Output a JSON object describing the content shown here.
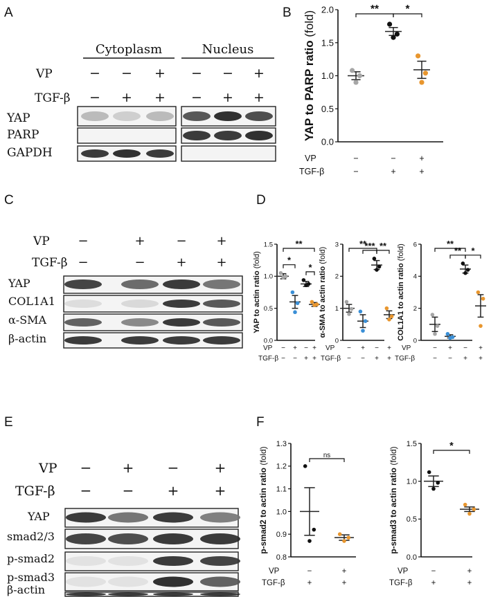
{
  "panels": {
    "A": {
      "letter": "A",
      "headers": [
        "Cytoplasm",
        "Nucleus"
      ],
      "rows": [
        {
          "label": "VP",
          "signs": [
            "−",
            "−",
            "+",
            "−",
            "−",
            "+"
          ]
        },
        {
          "label": "TGF-β",
          "signs": [
            "−",
            "+",
            "+",
            "−",
            "+",
            "+"
          ]
        }
      ],
      "blots": [
        {
          "label": "YAP",
          "intensity": [
            0.25,
            0.15,
            0.25,
            0.75,
            0.95,
            0.8
          ]
        },
        {
          "label": "PARP",
          "intensity": [
            0,
            0,
            0,
            0.9,
            0.9,
            0.95
          ]
        },
        {
          "label": "GAPDH",
          "intensity": [
            0.9,
            0.95,
            0.9,
            0,
            0,
            0
          ]
        }
      ]
    },
    "B": {
      "letter": "B"
    },
    "C": {
      "letter": "C",
      "rows": [
        {
          "label": "VP",
          "signs": [
            "−",
            "+",
            "−",
            "+"
          ]
        },
        {
          "label": "TGF-β",
          "signs": [
            "−",
            "−",
            "+",
            "+"
          ]
        }
      ],
      "blots": [
        {
          "label": "YAP",
          "intensity": [
            0.85,
            0.65,
            0.9,
            0.6
          ]
        },
        {
          "label": "COL1A1",
          "intensity": [
            0.08,
            0.1,
            0.9,
            0.75
          ]
        },
        {
          "label": "α-SMA",
          "intensity": [
            0.7,
            0.5,
            0.9,
            0.75
          ]
        },
        {
          "label": "β-actin",
          "intensity": [
            0.9,
            0.9,
            0.9,
            0.9
          ]
        }
      ]
    },
    "D": {
      "letter": "D"
    },
    "E": {
      "letter": "E",
      "rows": [
        {
          "label": "VP",
          "signs": [
            "−",
            "+",
            "−",
            "+"
          ]
        },
        {
          "label": "TGF-β",
          "signs": [
            "−",
            "−",
            "+",
            "+"
          ]
        }
      ],
      "blots": [
        {
          "label": "YAP",
          "intensity": [
            0.9,
            0.6,
            0.9,
            0.55
          ]
        },
        {
          "label": "smad2/3",
          "intensity": [
            0.85,
            0.8,
            0.9,
            0.9
          ]
        },
        {
          "label": "p-smad2",
          "intensity": [
            0.05,
            0.05,
            0.9,
            0.85
          ]
        },
        {
          "label": "p-smad3",
          "intensity": [
            0.05,
            0.05,
            0.95,
            0.7
          ]
        },
        {
          "label": "β-actin",
          "intensity": [
            0.9,
            0.9,
            0.9,
            0.9
          ]
        }
      ]
    },
    "F": {
      "letter": "F"
    }
  },
  "chart_data": [
    {
      "id": "B",
      "type": "scatter",
      "ylabel": "YAP to PARP ratio",
      "ylabel_unit": "(fold)",
      "ylim": [
        0,
        2.0
      ],
      "yticks": [
        "0.0",
        "0.5",
        "1.0",
        "1.5",
        "2.0"
      ],
      "row_labels": [
        "VP",
        "TGF-β"
      ],
      "groups": [
        {
          "vp": "−",
          "tgf": "−",
          "color": "#a6a6a6",
          "mean": 1.0,
          "err": 0.06,
          "points": [
            1.08,
            1.0,
            0.9
          ]
        },
        {
          "vp": "−",
          "tgf": "+",
          "color": "#111111",
          "mean": 1.67,
          "err": 0.06,
          "points": [
            1.78,
            1.63,
            1.58
          ]
        },
        {
          "vp": "+",
          "tgf": "+",
          "color": "#e8962e",
          "mean": 1.09,
          "err": 0.13,
          "points": [
            1.3,
            1.04,
            0.9
          ]
        }
      ],
      "significance": [
        {
          "from": 0,
          "to": 1,
          "label": "**"
        },
        {
          "from": 1,
          "to": 2,
          "label": "*"
        }
      ]
    },
    {
      "id": "D1",
      "type": "scatter",
      "ylabel": "YAP to actin ratio",
      "ylabel_unit": "(fold)",
      "ylim": [
        0,
        1.5
      ],
      "yticks": [
        "0.0",
        "0.5",
        "1.0",
        "1.5"
      ],
      "row_labels": [
        "VP",
        "TGF-β"
      ],
      "groups": [
        {
          "vp": "−",
          "tgf": "−",
          "color": "#a6a6a6",
          "mean": 1.0,
          "err": 0.04,
          "points": [
            1.05,
            1.0,
            0.98
          ]
        },
        {
          "vp": "+",
          "tgf": "−",
          "color": "#3a8fd6",
          "mean": 0.6,
          "err": 0.1,
          "points": [
            0.75,
            0.58,
            0.44
          ]
        },
        {
          "vp": "−",
          "tgf": "+",
          "color": "#111111",
          "mean": 0.88,
          "err": 0.04,
          "points": [
            0.94,
            0.88,
            0.86
          ]
        },
        {
          "vp": "+",
          "tgf": "+",
          "color": "#e8962e",
          "mean": 0.56,
          "err": 0.03,
          "points": [
            0.6,
            0.56,
            0.55
          ]
        }
      ],
      "significance": [
        {
          "from": 0,
          "to": 1,
          "label": "*"
        },
        {
          "from": 2,
          "to": 3,
          "label": "*"
        },
        {
          "from": 0,
          "to": 3,
          "label": "**"
        }
      ]
    },
    {
      "id": "D2",
      "type": "scatter",
      "ylabel": "α-SMA to actin ratio",
      "ylabel_unit": "(fold)",
      "ylim": [
        0,
        3
      ],
      "yticks": [
        "0",
        "1",
        "2",
        "3"
      ],
      "row_labels": [
        "VP",
        "TGF-β"
      ],
      "groups": [
        {
          "vp": "−",
          "tgf": "−",
          "color": "#a6a6a6",
          "mean": 1.0,
          "err": 0.12,
          "points": [
            1.2,
            0.98,
            0.82
          ]
        },
        {
          "vp": "+",
          "tgf": "−",
          "color": "#3a8fd6",
          "mean": 0.6,
          "err": 0.2,
          "points": [
            0.9,
            0.6,
            0.3
          ]
        },
        {
          "vp": "−",
          "tgf": "+",
          "color": "#111111",
          "mean": 2.35,
          "err": 0.14,
          "points": [
            2.55,
            2.3,
            2.2
          ]
        },
        {
          "vp": "+",
          "tgf": "+",
          "color": "#e8962e",
          "mean": 0.8,
          "err": 0.12,
          "points": [
            1.0,
            0.75,
            0.65
          ]
        }
      ],
      "significance": [
        {
          "from": 1,
          "to": 2,
          "label": "***"
        },
        {
          "from": 2,
          "to": 3,
          "label": "**"
        },
        {
          "from": 0,
          "to": 2,
          "label": "**"
        }
      ]
    },
    {
      "id": "D3",
      "type": "scatter",
      "ylabel": "COL1A1 to actin ratio",
      "ylabel_unit": "(fold)",
      "ylim": [
        0,
        6
      ],
      "yticks": [
        "0",
        "2",
        "4",
        "6"
      ],
      "row_labels": [
        "VP",
        "TGF-β"
      ],
      "groups": [
        {
          "vp": "−",
          "tgf": "−",
          "color": "#a6a6a6",
          "mean": 1.0,
          "err": 0.45,
          "points": [
            1.6,
            0.9,
            0.4
          ]
        },
        {
          "vp": "+",
          "tgf": "−",
          "color": "#3a8fd6",
          "mean": 0.25,
          "err": 0.1,
          "points": [
            0.4,
            0.2,
            0.15
          ]
        },
        {
          "vp": "−",
          "tgf": "+",
          "color": "#111111",
          "mean": 4.45,
          "err": 0.25,
          "points": [
            4.8,
            4.4,
            4.2
          ]
        },
        {
          "vp": "+",
          "tgf": "+",
          "color": "#e8962e",
          "mean": 2.15,
          "err": 0.7,
          "points": [
            3.0,
            2.6,
            0.9
          ]
        }
      ],
      "significance": [
        {
          "from": 1,
          "to": 2,
          "label": "**"
        },
        {
          "from": 2,
          "to": 3,
          "label": "*"
        },
        {
          "from": 0,
          "to": 2,
          "label": "**"
        }
      ]
    },
    {
      "id": "F1",
      "type": "scatter",
      "ylabel": "p-smad2 to actin ratio",
      "ylabel_unit": "(fold)",
      "ylim": [
        0.8,
        1.3
      ],
      "yticks": [
        "0.8",
        "0.9",
        "1.0",
        "1.1",
        "1.2",
        "1.3"
      ],
      "row_labels": [
        "VP",
        "TGF-β"
      ],
      "groups": [
        {
          "vp": "−",
          "tgf": "+",
          "color": "#111111",
          "mean": 1.0,
          "err": 0.105,
          "points": [
            1.2,
            0.92,
            0.87
          ]
        },
        {
          "vp": "+",
          "tgf": "+",
          "color": "#e8962e",
          "mean": 0.885,
          "err": 0.012,
          "points": [
            0.9,
            0.885,
            0.87
          ]
        }
      ],
      "significance": [
        {
          "from": 0,
          "to": 1,
          "label": "ns"
        }
      ]
    },
    {
      "id": "F2",
      "type": "scatter",
      "ylabel": "p-smad3 to actin ratio",
      "ylabel_unit": "(fold)",
      "ylim": [
        0,
        1.5
      ],
      "yticks": [
        "0.0",
        "0.5",
        "1.0",
        "1.5"
      ],
      "row_labels": [
        "VP",
        "TGF-β"
      ],
      "groups": [
        {
          "vp": "−",
          "tgf": "+",
          "color": "#111111",
          "mean": 1.0,
          "err": 0.07,
          "points": [
            1.12,
            0.98,
            0.9
          ]
        },
        {
          "vp": "+",
          "tgf": "+",
          "color": "#e8962e",
          "mean": 0.63,
          "err": 0.03,
          "points": [
            0.69,
            0.63,
            0.57
          ]
        }
      ],
      "significance": [
        {
          "from": 0,
          "to": 1,
          "label": "*"
        }
      ]
    }
  ]
}
